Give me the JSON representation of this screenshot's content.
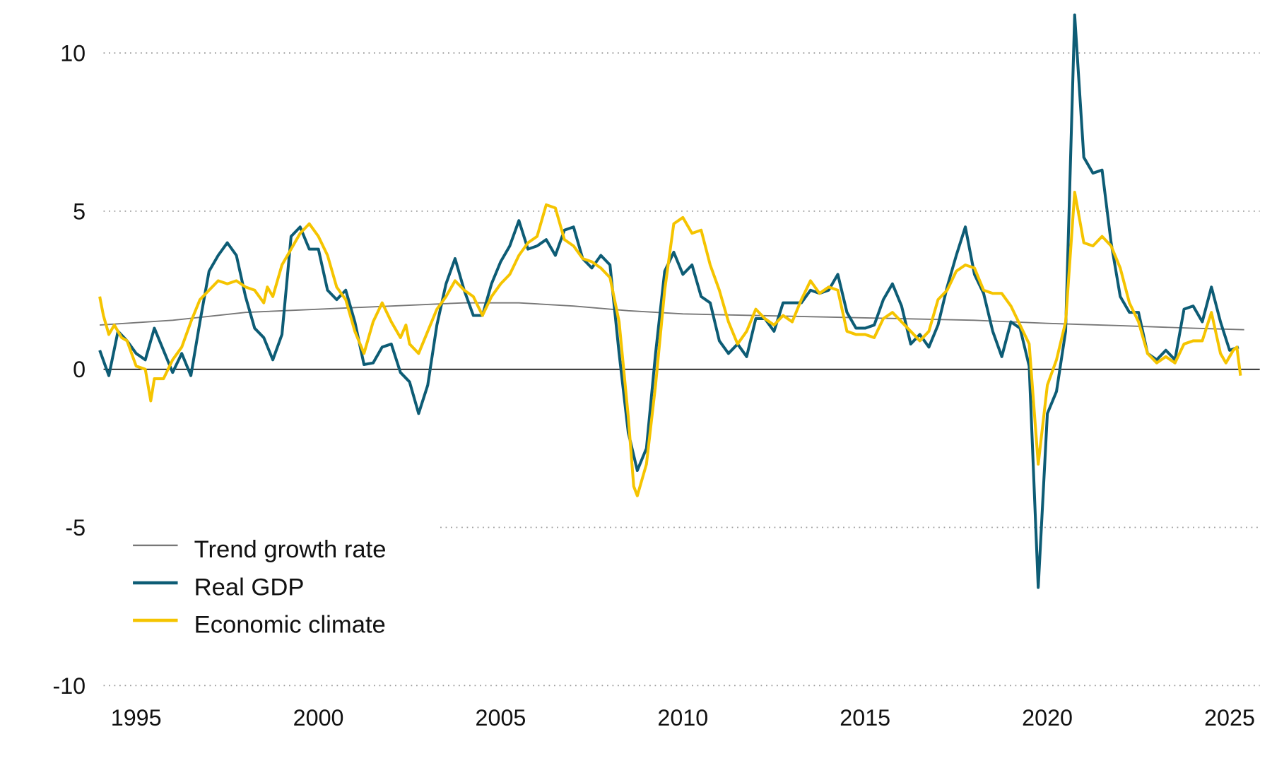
{
  "chart_data": {
    "type": "line",
    "title": "",
    "xlabel": "",
    "ylabel": "",
    "ylim": [
      -10,
      11.5
    ],
    "xlim": [
      1994.5,
      2026
    ],
    "grid": "horizontal dotted",
    "legend_position": "bottom-left",
    "y_ticks": [
      "10",
      "5",
      "0",
      "-5",
      "-10"
    ],
    "y_tick_values": [
      10,
      5,
      0,
      -5,
      -10
    ],
    "x_ticks": [
      "1995",
      "2000",
      "2005",
      "2010",
      "2015",
      "2020",
      "2025"
    ],
    "x_tick_values": [
      1995,
      2000,
      2005,
      2010,
      2015,
      2020,
      2025
    ],
    "series": [
      {
        "name": "Trend growth rate",
        "color": "#777777",
        "points": [
          [
            1994.5,
            1.4
          ],
          [
            1996.5,
            1.55
          ],
          [
            1998.5,
            1.8
          ],
          [
            2000.5,
            1.9
          ],
          [
            2002.5,
            2.0
          ],
          [
            2004.5,
            2.1
          ],
          [
            2006,
            2.1
          ],
          [
            2007.5,
            2.0
          ],
          [
            2009,
            1.85
          ],
          [
            2010.5,
            1.75
          ],
          [
            2012.5,
            1.7
          ],
          [
            2014.5,
            1.65
          ],
          [
            2016.5,
            1.6
          ],
          [
            2018.5,
            1.55
          ],
          [
            2020.5,
            1.45
          ],
          [
            2022.5,
            1.38
          ],
          [
            2024.5,
            1.3
          ],
          [
            2025.9,
            1.25
          ]
        ]
      },
      {
        "name": "Real GDP",
        "color": "#0d5c75",
        "start": 1994.5,
        "step": 0.25,
        "values": [
          0.6,
          -0.2,
          1.2,
          0.9,
          0.5,
          0.3,
          1.3,
          0.6,
          -0.1,
          0.5,
          -0.2,
          1.5,
          3.1,
          3.6,
          4.0,
          3.6,
          2.3,
          1.3,
          1.0,
          0.3,
          1.1,
          4.2,
          4.5,
          3.8,
          3.8,
          2.5,
          2.2,
          2.5,
          1.5,
          0.15,
          0.2,
          0.7,
          0.8,
          -0.1,
          -0.4,
          -1.4,
          -0.5,
          1.4,
          2.7,
          3.5,
          2.5,
          1.7,
          1.7,
          2.7,
          3.4,
          3.9,
          4.7,
          3.8,
          3.9,
          4.1,
          3.6,
          4.4,
          4.5,
          3.5,
          3.2,
          3.6,
          3.3,
          0.5,
          -2.0,
          -3.2,
          -2.5,
          0.5,
          3.1,
          3.7,
          3.0,
          3.3,
          2.3,
          2.1,
          0.9,
          0.5,
          0.8,
          0.4,
          1.6,
          1.6,
          1.2,
          2.1,
          2.1,
          2.1,
          2.5,
          2.4,
          2.5,
          3.0,
          1.8,
          1.3,
          1.3,
          1.4,
          2.2,
          2.7,
          2.0,
          0.8,
          1.1,
          0.7,
          1.4,
          2.6,
          3.6,
          4.5,
          3.0,
          2.4,
          1.2,
          0.4,
          1.5,
          1.3,
          0.1,
          -6.9,
          -1.4,
          -0.7,
          1.2,
          11.2,
          6.7,
          6.2,
          6.3,
          4.0,
          2.3,
          1.8,
          1.8,
          0.5,
          0.3,
          0.6,
          0.3,
          1.9,
          2.0,
          1.5,
          2.6,
          1.5,
          0.6,
          0.7
        ]
      },
      {
        "name": "Economic climate",
        "color": "#f5c400",
        "points": [
          [
            1994.5,
            2.3
          ],
          [
            1994.6,
            1.7
          ],
          [
            1994.75,
            1.1
          ],
          [
            1994.9,
            1.4
          ],
          [
            1995.1,
            1.0
          ],
          [
            1995.25,
            0.9
          ],
          [
            1995.5,
            0.1
          ],
          [
            1995.75,
            0.0
          ],
          [
            1995.9,
            -1.0
          ],
          [
            1996,
            -0.3
          ],
          [
            1996.25,
            -0.3
          ],
          [
            1996.5,
            0.3
          ],
          [
            1996.75,
            0.7
          ],
          [
            1997,
            1.5
          ],
          [
            1997.25,
            2.2
          ],
          [
            1997.5,
            2.5
          ],
          [
            1997.75,
            2.8
          ],
          [
            1998,
            2.7
          ],
          [
            1998.25,
            2.8
          ],
          [
            1998.5,
            2.6
          ],
          [
            1998.75,
            2.5
          ],
          [
            1999,
            2.1
          ],
          [
            1999.1,
            2.6
          ],
          [
            1999.25,
            2.3
          ],
          [
            1999.5,
            3.3
          ],
          [
            1999.75,
            3.8
          ],
          [
            2000,
            4.3
          ],
          [
            2000.25,
            4.6
          ],
          [
            2000.5,
            4.2
          ],
          [
            2000.75,
            3.6
          ],
          [
            2001,
            2.6
          ],
          [
            2001.25,
            2.2
          ],
          [
            2001.5,
            1.2
          ],
          [
            2001.75,
            0.5
          ],
          [
            2002,
            1.5
          ],
          [
            2002.25,
            2.1
          ],
          [
            2002.5,
            1.5
          ],
          [
            2002.75,
            1.0
          ],
          [
            2002.9,
            1.4
          ],
          [
            2003,
            0.8
          ],
          [
            2003.25,
            0.5
          ],
          [
            2003.5,
            1.2
          ],
          [
            2003.75,
            1.9
          ],
          [
            2004,
            2.3
          ],
          [
            2004.25,
            2.8
          ],
          [
            2004.5,
            2.5
          ],
          [
            2004.75,
            2.3
          ],
          [
            2005,
            1.7
          ],
          [
            2005.25,
            2.3
          ],
          [
            2005.5,
            2.7
          ],
          [
            2005.75,
            3.0
          ],
          [
            2006,
            3.6
          ],
          [
            2006.25,
            4.0
          ],
          [
            2006.5,
            4.2
          ],
          [
            2006.75,
            5.2
          ],
          [
            2007,
            5.1
          ],
          [
            2007.25,
            4.1
          ],
          [
            2007.5,
            3.9
          ],
          [
            2007.75,
            3.5
          ],
          [
            2008,
            3.4
          ],
          [
            2008.25,
            3.2
          ],
          [
            2008.5,
            2.9
          ],
          [
            2008.75,
            1.5
          ],
          [
            2009,
            -1.5
          ],
          [
            2009.15,
            -3.7
          ],
          [
            2009.25,
            -4.0
          ],
          [
            2009.5,
            -3.0
          ],
          [
            2009.75,
            -0.5
          ],
          [
            2010,
            2.5
          ],
          [
            2010.25,
            4.6
          ],
          [
            2010.5,
            4.8
          ],
          [
            2010.75,
            4.3
          ],
          [
            2011,
            4.4
          ],
          [
            2011.25,
            3.3
          ],
          [
            2011.5,
            2.5
          ],
          [
            2011.75,
            1.5
          ],
          [
            2012,
            0.8
          ],
          [
            2012.25,
            1.2
          ],
          [
            2012.5,
            1.9
          ],
          [
            2012.75,
            1.6
          ],
          [
            2013,
            1.4
          ],
          [
            2013.25,
            1.7
          ],
          [
            2013.5,
            1.5
          ],
          [
            2013.75,
            2.2
          ],
          [
            2014,
            2.8
          ],
          [
            2014.25,
            2.4
          ],
          [
            2014.5,
            2.6
          ],
          [
            2014.75,
            2.5
          ],
          [
            2015,
            1.2
          ],
          [
            2015.25,
            1.1
          ],
          [
            2015.5,
            1.1
          ],
          [
            2015.75,
            1.0
          ],
          [
            2016,
            1.6
          ],
          [
            2016.25,
            1.8
          ],
          [
            2016.5,
            1.5
          ],
          [
            2016.75,
            1.2
          ],
          [
            2017,
            0.9
          ],
          [
            2017.25,
            1.2
          ],
          [
            2017.5,
            2.2
          ],
          [
            2017.75,
            2.5
          ],
          [
            2018,
            3.1
          ],
          [
            2018.25,
            3.3
          ],
          [
            2018.5,
            3.2
          ],
          [
            2018.75,
            2.5
          ],
          [
            2019,
            2.4
          ],
          [
            2019.25,
            2.4
          ],
          [
            2019.5,
            2.0
          ],
          [
            2019.75,
            1.4
          ],
          [
            2020,
            0.8
          ],
          [
            2020.25,
            -3.0
          ],
          [
            2020.5,
            -0.5
          ],
          [
            2020.75,
            0.3
          ],
          [
            2021,
            1.5
          ],
          [
            2021.25,
            5.6
          ],
          [
            2021.5,
            4.0
          ],
          [
            2021.75,
            3.9
          ],
          [
            2022,
            4.2
          ],
          [
            2022.25,
            3.9
          ],
          [
            2022.5,
            3.2
          ],
          [
            2022.75,
            2.1
          ],
          [
            2023,
            1.5
          ],
          [
            2023.25,
            0.5
          ],
          [
            2023.5,
            0.2
          ],
          [
            2023.75,
            0.4
          ],
          [
            2024,
            0.2
          ],
          [
            2024.25,
            0.8
          ],
          [
            2024.5,
            0.9
          ],
          [
            2024.75,
            0.9
          ],
          [
            2025,
            1.8
          ],
          [
            2025.25,
            0.5
          ],
          [
            2025.4,
            0.2
          ],
          [
            2025.5,
            0.4
          ],
          [
            2025.6,
            0.6
          ],
          [
            2025.7,
            0.7
          ],
          [
            2025.8,
            -0.2
          ]
        ]
      }
    ]
  }
}
